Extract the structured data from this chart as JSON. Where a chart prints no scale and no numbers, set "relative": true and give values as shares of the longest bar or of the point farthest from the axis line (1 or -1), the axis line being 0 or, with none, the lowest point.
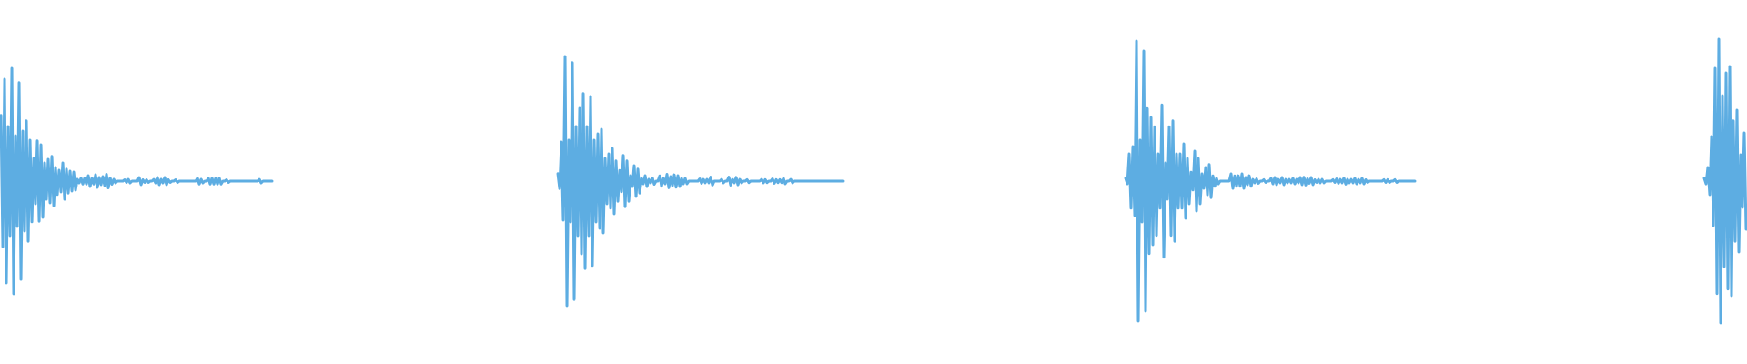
{
  "chart_data": [
    {
      "type": "line",
      "relative": true,
      "categories": [
        null,
        null,
        null,
        null,
        null,
        null,
        null,
        null,
        null,
        null,
        null,
        null,
        null,
        null,
        null,
        null,
        null,
        null,
        null,
        null,
        null,
        null,
        null,
        null,
        null,
        null,
        null,
        null,
        null,
        null,
        null,
        null,
        null,
        null,
        null,
        null,
        null,
        null,
        null,
        null,
        null,
        null,
        null,
        null,
        null,
        null,
        null,
        null,
        null,
        null,
        null,
        null,
        null,
        null,
        null,
        null,
        null,
        null,
        null,
        null,
        null,
        null,
        null,
        null,
        null,
        null,
        null,
        null,
        null,
        null,
        null,
        null,
        null,
        null,
        null,
        null,
        null,
        null,
        null,
        null,
        null,
        null,
        null,
        null,
        null,
        null,
        null,
        null,
        null,
        null,
        null,
        null,
        null,
        null,
        null,
        null,
        null,
        null,
        null,
        null,
        null,
        null,
        null,
        null,
        null,
        null,
        null,
        null,
        null,
        null,
        null,
        null,
        null,
        null,
        null,
        null,
        null,
        null,
        null,
        null,
        null,
        null,
        null,
        null,
        null,
        null,
        null,
        null,
        null,
        null,
        null,
        null,
        null,
        null,
        null,
        null,
        null,
        null,
        null,
        null,
        null,
        null,
        null,
        null,
        null,
        null,
        null,
        null,
        null,
        null
      ],
      "series": [
        {
          "color": "#5dade2",
          "values": [
            0.791,
            0.209,
            0.952,
            0.048,
            0.742,
            0.258,
            1,
            0,
            0.702,
            0.298,
            0.936,
            0.064,
            0.722,
            0.278,
            0.767,
            0.233,
            0.681,
            0.319,
            0.601,
            0.399,
            0.678,
            0.322,
            0.661,
            0.339,
            0.581,
            0.419,
            0.597,
            0.403,
            0.61,
            0.39,
            0.56,
            0.44,
            0.548,
            0.452,
            0.581,
            0.419,
            0.553,
            0.447,
            0.544,
            0.456,
            0.54,
            0.46,
            0.508,
            0.492,
            0.513,
            0.487,
            0.513,
            0.487,
            0.524,
            0.476,
            0.513,
            0.487,
            0.528,
            0.472,
            0.516,
            0.484,
            0.52,
            0.48,
            0.53,
            0.47,
            0.514,
            0.486,
            0.508,
            0.492,
            0.5,
            0.5,
            0.5,
            0.5,
            0.506,
            0.494,
            0.508,
            0.492,
            0.5,
            0.5,
            0.5,
            0.5,
            0.516,
            0.484,
            0.506,
            0.494,
            0.506,
            0.494,
            0.5,
            0.5,
            0.508,
            0.492,
            0.516,
            0.484,
            0.508,
            0.492,
            0.516,
            0.484,
            0.506,
            0.494,
            0.5,
            0.5,
            0.506,
            0.494,
            0.5,
            0.5,
            0.5,
            0.5,
            0.5,
            0.5,
            0.5,
            0.5,
            0.5,
            0.5,
            0.513,
            0.487,
            0.508,
            0.492,
            0.5,
            0.5,
            0.513,
            0.487,
            0.513,
            0.487,
            0.513,
            0.487,
            0.513,
            0.487,
            0.5,
            0.5,
            0.506,
            0.494,
            0.5,
            0.5,
            0.5,
            0.5,
            0.5,
            0.5,
            0.5,
            0.5,
            0.5,
            0.5,
            0.5,
            0.5,
            0.5,
            0.5,
            0.5,
            0.5,
            0.508,
            0.492,
            0.5,
            0.5,
            0.5,
            0.5,
            0.5,
            0.5
          ]
        }
      ]
    },
    {
      "type": "line",
      "relative": true,
      "categories": [
        null,
        null,
        null,
        null,
        null,
        null,
        null,
        null,
        null,
        null,
        null,
        null,
        null,
        null,
        null,
        null,
        null,
        null,
        null,
        null,
        null,
        null,
        null,
        null,
        null,
        null,
        null,
        null,
        null,
        null,
        null,
        null,
        null,
        null,
        null,
        null,
        null,
        null,
        null,
        null,
        null,
        null,
        null,
        null,
        null,
        null,
        null,
        null,
        null,
        null,
        null,
        null,
        null,
        null,
        null,
        null,
        null,
        null,
        null,
        null,
        null,
        null,
        null,
        null,
        null,
        null,
        null,
        null,
        null,
        null,
        null,
        null,
        null,
        null,
        null,
        null,
        null,
        null,
        null,
        null,
        null,
        null,
        null,
        null,
        null,
        null,
        null,
        null,
        null,
        null,
        null,
        null,
        null,
        null,
        null,
        null,
        null,
        null,
        null,
        null,
        null,
        null,
        null,
        null,
        null,
        null,
        null,
        null,
        null,
        null,
        null,
        null,
        null,
        null,
        null,
        null,
        null,
        null,
        null,
        null,
        null,
        null,
        null,
        null,
        null,
        null,
        null,
        null,
        null,
        null,
        null,
        null,
        null,
        null,
        null,
        null,
        null,
        null,
        null,
        null,
        null,
        null,
        null,
        null,
        null,
        null,
        null,
        null,
        null,
        null,
        null,
        null,
        null,
        null,
        null,
        null,
        null,
        null
      ],
      "series": [
        {
          "color": "#5dade2",
          "values": [
            0.53,
            0.47,
            0.657,
            0.343,
            1,
            0,
            0.664,
            0.336,
            0.975,
            0.025,
            0.719,
            0.281,
            0.792,
            0.208,
            0.851,
            0.149,
            0.719,
            0.281,
            0.839,
            0.161,
            0.664,
            0.336,
            0.69,
            0.31,
            0.708,
            0.292,
            0.591,
            0.409,
            0.609,
            0.391,
            0.631,
            0.369,
            0.581,
            0.419,
            0.543,
            0.457,
            0.603,
            0.397,
            0.581,
            0.419,
            0.522,
            0.478,
            0.562,
            0.438,
            0.548,
            0.452,
            0.511,
            0.489,
            0.522,
            0.478,
            0.507,
            0.493,
            0.513,
            0.487,
            0.5,
            0.5,
            0.521,
            0.479,
            0.511,
            0.489,
            0.527,
            0.473,
            0.518,
            0.482,
            0.525,
            0.475,
            0.522,
            0.478,
            0.511,
            0.489,
            0.511,
            0.489,
            0.5,
            0.5,
            0.5,
            0.5,
            0.5,
            0.5,
            0.509,
            0.491,
            0.507,
            0.493,
            0.507,
            0.493,
            0.516,
            0.484,
            0.5,
            0.5,
            0.5,
            0.5,
            0.507,
            0.493,
            0.5,
            0.5,
            0.516,
            0.484,
            0.507,
            0.493,
            0.515,
            0.485,
            0.507,
            0.493,
            0.5,
            0.5,
            0.506,
            0.494,
            0.5,
            0.5,
            0.5,
            0.5,
            0.5,
            0.5,
            0.507,
            0.493,
            0.506,
            0.494,
            0.5,
            0.5,
            0.509,
            0.491,
            0.506,
            0.494,
            0.506,
            0.494,
            0.511,
            0.489,
            0.5,
            0.5,
            0.507,
            0.493,
            0.5,
            0.5,
            0.5,
            0.5,
            0.5,
            0.5,
            0.5,
            0.5,
            0.5,
            0.5,
            0.5,
            0.5,
            0.5,
            0.5,
            0.5,
            0.5,
            0.5,
            0.5,
            0.5,
            0.5,
            0.5,
            0.5,
            0.5,
            0.5,
            0.5,
            0.5,
            0.5,
            0.5
          ]
        }
      ]
    },
    {
      "type": "line",
      "relative": true,
      "categories": [
        null,
        null,
        null,
        null,
        null,
        null,
        null,
        null,
        null,
        null,
        null,
        null,
        null,
        null,
        null,
        null,
        null,
        null,
        null,
        null,
        null,
        null,
        null,
        null,
        null,
        null,
        null,
        null,
        null,
        null,
        null,
        null,
        null,
        null,
        null,
        null,
        null,
        null,
        null,
        null,
        null,
        null,
        null,
        null,
        null,
        null,
        null,
        null,
        null,
        null,
        null,
        null,
        null,
        null,
        null,
        null,
        null,
        null,
        null,
        null,
        null,
        null,
        null,
        null,
        null,
        null,
        null,
        null,
        null,
        null,
        null,
        null,
        null,
        null,
        null,
        null,
        null,
        null,
        null,
        null,
        null,
        null,
        null,
        null,
        null,
        null,
        null,
        null,
        null,
        null,
        null,
        null,
        null,
        null,
        null,
        null,
        null,
        null,
        null,
        null,
        null,
        null,
        null,
        null,
        null,
        null,
        null,
        null,
        null,
        null,
        null,
        null,
        null,
        null,
        null,
        null,
        null,
        null,
        null,
        null,
        null,
        null,
        null,
        null,
        null,
        null,
        null,
        null,
        null,
        null,
        null,
        null,
        null,
        null,
        null,
        null,
        null,
        null,
        null,
        null,
        null,
        null,
        null,
        null,
        null,
        null,
        null,
        null,
        null,
        null,
        null,
        null,
        null,
        null,
        null,
        null,
        null,
        null,
        null,
        null
      ],
      "series": [
        {
          "color": "#5dade2",
          "values": [
            0.51,
            0.49,
            0.597,
            0.403,
            0.623,
            0.377,
            1,
            0,
            0.646,
            0.354,
            0.964,
            0.036,
            0.759,
            0.241,
            0.727,
            0.273,
            0.694,
            0.306,
            0.597,
            0.403,
            0.772,
            0.228,
            0.565,
            0.435,
            0.694,
            0.306,
            0.715,
            0.285,
            0.597,
            0.403,
            0.597,
            0.403,
            0.633,
            0.367,
            0.581,
            0.419,
            0.532,
            0.468,
            0.607,
            0.393,
            0.581,
            0.419,
            0.526,
            0.474,
            0.549,
            0.451,
            0.559,
            0.441,
            0.519,
            0.481,
            0.51,
            0.49,
            0.5,
            0.5,
            0.5,
            0.5,
            0.5,
            0.5,
            0.526,
            0.474,
            0.519,
            0.481,
            0.519,
            0.481,
            0.526,
            0.474,
            0.513,
            0.487,
            0.519,
            0.481,
            0.506,
            0.494,
            0.508,
            0.492,
            0.5,
            0.5,
            0.505,
            0.495,
            0.5,
            0.5,
            0.51,
            0.49,
            0.513,
            0.487,
            0.506,
            0.494,
            0.513,
            0.487,
            0.506,
            0.494,
            0.506,
            0.494,
            0.51,
            0.49,
            0.506,
            0.494,
            0.513,
            0.487,
            0.514,
            0.486,
            0.508,
            0.492,
            0.513,
            0.487,
            0.505,
            0.495,
            0.506,
            0.494,
            0.506,
            0.494,
            0.5,
            0.5,
            0.5,
            0.5,
            0.505,
            0.495,
            0.508,
            0.492,
            0.506,
            0.494,
            0.511,
            0.489,
            0.506,
            0.494,
            0.506,
            0.494,
            0.51,
            0.49,
            0.506,
            0.494,
            0.51,
            0.49,
            0.505,
            0.495,
            0.5,
            0.5,
            0.5,
            0.5,
            0.5,
            0.5,
            0.5,
            0.5,
            0.505,
            0.495,
            0.505,
            0.495,
            0.5,
            0.5,
            0.505,
            0.495,
            0.5,
            0.5,
            0.5,
            0.5,
            0.5,
            0.5,
            0.5,
            0.5,
            0.5,
            0.5
          ]
        }
      ]
    },
    {
      "type": "line",
      "relative": true,
      "categories": [
        null,
        null,
        null,
        null,
        null,
        null,
        null,
        null,
        null,
        null,
        null,
        null,
        null,
        null,
        null,
        null,
        null,
        null,
        null,
        null,
        null,
        null,
        null,
        null
      ],
      "series": [
        {
          "color": "#5dade2",
          "values": [
            0.51,
            0.49,
            0.548,
            0.452,
            0.657,
            0.343,
            0.897,
            0.103,
            1,
            0,
            0.801,
            0.199,
            0.881,
            0.119,
            0.904,
            0.096,
            0.712,
            0.288,
            0.75,
            0.25,
            0.593,
            0.407,
            0.67,
            0.33
          ]
        }
      ]
    }
  ]
}
